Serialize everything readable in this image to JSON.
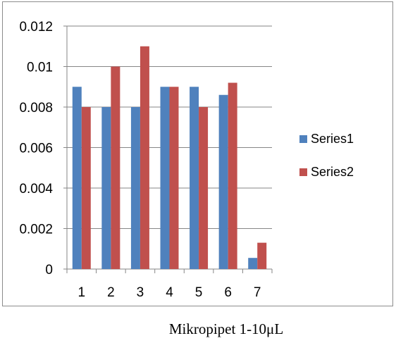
{
  "chart_data": {
    "type": "bar",
    "categories": [
      "1",
      "2",
      "3",
      "4",
      "5",
      "6",
      "7"
    ],
    "series": [
      {
        "name": "Series1",
        "color": "#4F81BD",
        "values": [
          0.009,
          0.008,
          0.008,
          0.009,
          0.009,
          0.0086,
          0.00055
        ]
      },
      {
        "name": "Series2",
        "color": "#C0504D",
        "values": [
          0.008,
          0.01,
          0.011,
          0.009,
          0.008,
          0.0092,
          0.0013
        ]
      }
    ],
    "y_ticks": [
      "0",
      "0.002",
      "0.004",
      "0.006",
      "0.008",
      "0.01",
      "0.012"
    ],
    "ylim": [
      0,
      0.012
    ],
    "grid": true,
    "legend_position": "right"
  },
  "caption": "Mikropipet 1-10μL"
}
